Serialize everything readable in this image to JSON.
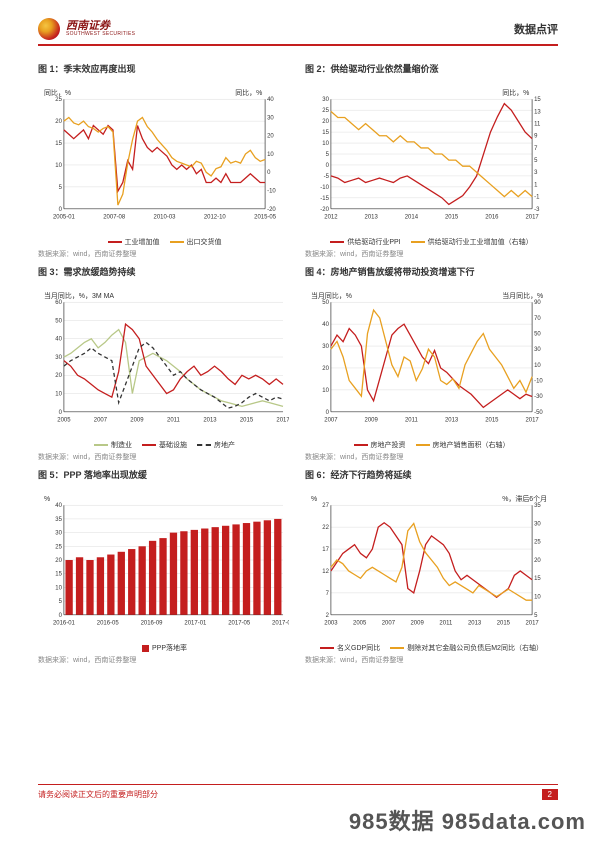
{
  "header": {
    "logo_cn": "西南证券",
    "logo_en": "SOUTHWEST SECURITIES",
    "right": "数据点评"
  },
  "panels": [
    {
      "title": "图 1：季末效应再度出现",
      "y_left_label": "同比，%",
      "y_right_label": "同比，%",
      "type": "line",
      "x_labels": [
        "2005-01",
        "2007-08",
        "2010-03",
        "2012-10",
        "2015-05"
      ],
      "y_left": {
        "min": 0,
        "max": 25,
        "ticks": [
          0,
          5,
          10,
          15,
          20,
          25
        ]
      },
      "y_right": {
        "min": -20,
        "max": 40,
        "ticks": [
          -20,
          -10,
          0,
          10,
          20,
          30,
          40
        ]
      },
      "series": [
        {
          "name": "工业增加值",
          "color": "#c41e1e",
          "axis": "left",
          "data": [
            18,
            17,
            16,
            17,
            18,
            16,
            19,
            18,
            17,
            19,
            18,
            4,
            6,
            11,
            9,
            19,
            16,
            14,
            13,
            14,
            13,
            12,
            10,
            9,
            10,
            9,
            10,
            8,
            9,
            6,
            6,
            7,
            6,
            8,
            6,
            6,
            6,
            7,
            8,
            7,
            6,
            6
          ]
        },
        {
          "name": "出口交货值",
          "color": "#e8a020",
          "axis": "right",
          "data": [
            28,
            30,
            27,
            26,
            28,
            25,
            24,
            22,
            24,
            25,
            22,
            -18,
            -12,
            5,
            18,
            28,
            30,
            25,
            22,
            18,
            15,
            12,
            8,
            6,
            5,
            4,
            3,
            6,
            5,
            0,
            -2,
            2,
            3,
            8,
            5,
            6,
            5,
            10,
            12,
            8,
            6,
            7
          ]
        }
      ],
      "legend": [
        {
          "label": "工业增加值",
          "color": "#c41e1e"
        },
        {
          "label": "出口交货值",
          "color": "#e8a020"
        }
      ],
      "source": "数据来源：wind，西南证券整理"
    },
    {
      "title": "图 2：供给驱动行业依然量缩价涨",
      "y_right_label": "同比，%",
      "type": "line",
      "x_labels": [
        "2012",
        "2013",
        "2014",
        "2015",
        "2016",
        "2017"
      ],
      "y_left": {
        "min": -20,
        "max": 30,
        "ticks": [
          -20,
          -15,
          -10,
          -5,
          0,
          5,
          10,
          15,
          20,
          25,
          30
        ]
      },
      "y_right": {
        "min": -3,
        "max": 15,
        "ticks": [
          -3,
          -1,
          1,
          3,
          5,
          7,
          9,
          11,
          13,
          15
        ]
      },
      "series": [
        {
          "name": "供给驱动行业PPI",
          "color": "#c41e1e",
          "axis": "left",
          "data": [
            -5,
            -6,
            -8,
            -7,
            -6,
            -8,
            -7,
            -6,
            -7,
            -8,
            -6,
            -5,
            -7,
            -9,
            -11,
            -13,
            -15,
            -18,
            -16,
            -14,
            -10,
            -5,
            5,
            15,
            22,
            28,
            25,
            20,
            15,
            12
          ]
        },
        {
          "name": "供给驱动行业工业增加值（右轴）",
          "color": "#e8a020",
          "axis": "right",
          "data": [
            13,
            12,
            12,
            11,
            10,
            11,
            10,
            9,
            9,
            8,
            9,
            8,
            8,
            7,
            7,
            6,
            6,
            5,
            5,
            4,
            4,
            3,
            2,
            1,
            0,
            -1,
            0,
            -1,
            0,
            -1
          ]
        }
      ],
      "legend": [
        {
          "label": "供给驱动行业PPI",
          "color": "#c41e1e"
        },
        {
          "label": "供给驱动行业工业增加值（右轴）",
          "color": "#e8a020"
        }
      ],
      "source": "数据来源：wind，西南证券整理"
    },
    {
      "title": "图 3：需求放缓趋势持续",
      "y_left_label": "当月同比，%，3M MA",
      "type": "line",
      "x_labels": [
        "2005",
        "2007",
        "2009",
        "2011",
        "2013",
        "2015",
        "2017"
      ],
      "y_left": {
        "min": 0,
        "max": 60,
        "ticks": [
          0,
          10,
          20,
          30,
          40,
          50,
          60
        ]
      },
      "series": [
        {
          "name": "制造业",
          "color": "#b8c888",
          "axis": "left",
          "dash": "none",
          "data": [
            30,
            32,
            35,
            38,
            40,
            35,
            38,
            42,
            45,
            38,
            10,
            28,
            30,
            32,
            30,
            28,
            25,
            22,
            18,
            15,
            12,
            10,
            8,
            6,
            5,
            4,
            3,
            4,
            5,
            6,
            5,
            4,
            3
          ]
        },
        {
          "name": "基础设施",
          "color": "#c41e1e",
          "axis": "left",
          "dash": "none",
          "data": [
            28,
            25,
            20,
            18,
            15,
            12,
            10,
            8,
            22,
            48,
            45,
            40,
            25,
            20,
            15,
            10,
            12,
            18,
            22,
            25,
            20,
            22,
            25,
            22,
            18,
            15,
            20,
            18,
            20,
            18,
            15,
            18,
            15
          ]
        },
        {
          "name": "房地产",
          "color": "#333333",
          "axis": "left",
          "dash": "4,3",
          "data": [
            25,
            28,
            30,
            32,
            35,
            32,
            30,
            28,
            5,
            15,
            25,
            35,
            38,
            35,
            30,
            25,
            20,
            22,
            18,
            15,
            12,
            10,
            8,
            5,
            2,
            3,
            5,
            8,
            10,
            8,
            6,
            8,
            7
          ]
        }
      ],
      "legend": [
        {
          "label": "制造业",
          "color": "#b8c888"
        },
        {
          "label": "基础设施",
          "color": "#c41e1e"
        },
        {
          "label": "房地产",
          "color": "#333333",
          "dash": true
        }
      ],
      "source": "数据来源：wind，西南证券整理"
    },
    {
      "title": "图 4：房地产销售放缓将带动投资增速下行",
      "y_left_label": "当月同比，%",
      "y_right_label": "当月同比，%",
      "type": "line",
      "x_labels": [
        "2007",
        "2009",
        "2011",
        "2013",
        "2015",
        "2017"
      ],
      "y_left": {
        "min": 0,
        "max": 50,
        "ticks": [
          0,
          10,
          20,
          30,
          40,
          50
        ]
      },
      "y_right": {
        "min": -50,
        "max": 90,
        "ticks": [
          -50,
          -30,
          -10,
          10,
          30,
          50,
          70,
          90
        ]
      },
      "series": [
        {
          "name": "房地产投资",
          "color": "#c41e1e",
          "axis": "left",
          "data": [
            30,
            35,
            32,
            38,
            35,
            30,
            10,
            5,
            15,
            25,
            35,
            38,
            40,
            35,
            30,
            25,
            22,
            28,
            20,
            18,
            15,
            12,
            10,
            8,
            5,
            2,
            4,
            6,
            8,
            10,
            8,
            6,
            8,
            7
          ]
        },
        {
          "name": "房地产销售面积（右轴）",
          "color": "#e8a020",
          "axis": "right",
          "data": [
            30,
            40,
            20,
            -10,
            -20,
            -30,
            50,
            80,
            70,
            40,
            10,
            -5,
            20,
            15,
            -10,
            5,
            30,
            20,
            -10,
            -15,
            -8,
            -20,
            10,
            25,
            40,
            50,
            30,
            20,
            10,
            -5,
            -20,
            -10,
            -25,
            -5
          ]
        }
      ],
      "legend": [
        {
          "label": "房地产投资",
          "color": "#c41e1e"
        },
        {
          "label": "房地产销售面积（右轴）",
          "color": "#e8a020"
        }
      ],
      "source": "数据来源：wind，西南证券整理"
    },
    {
      "title": "图 5：PPP 落地率出现放缓",
      "y_left_label": "%",
      "type": "bar",
      "x_labels": [
        "2016-01",
        "2016-05",
        "2016-09",
        "2017-01",
        "2017-05",
        "2017-09"
      ],
      "y_left": {
        "min": 0,
        "max": 40,
        "ticks": [
          0,
          5,
          10,
          15,
          20,
          25,
          30,
          35,
          40
        ]
      },
      "bars": {
        "color": "#c41e1e",
        "data": [
          20,
          21,
          20,
          21,
          22,
          23,
          24,
          25,
          27,
          28,
          30,
          30.5,
          31,
          31.5,
          32,
          32.5,
          33,
          33.5,
          34,
          34.5,
          35
        ]
      },
      "legend": [
        {
          "label": "PPP落地率",
          "color": "#c41e1e",
          "type": "bar"
        }
      ],
      "source": "数据来源：wind，西南证券整理"
    },
    {
      "title": "图 6：经济下行趋势将延续",
      "y_left_label": "%",
      "y_right_label": "%，滞后6个月",
      "type": "line",
      "x_labels": [
        "2003",
        "2005",
        "2007",
        "2009",
        "2011",
        "2013",
        "2015",
        "2017"
      ],
      "y_left": {
        "min": 2,
        "max": 27,
        "ticks": [
          2,
          7,
          12,
          17,
          22,
          27
        ]
      },
      "y_right": {
        "min": 5,
        "max": 35,
        "ticks": [
          5,
          10,
          15,
          20,
          25,
          30,
          35
        ]
      },
      "series": [
        {
          "name": "名义GDP同比",
          "color": "#c41e1e",
          "axis": "left",
          "data": [
            12,
            14,
            16,
            17,
            18,
            16,
            15,
            17,
            22,
            23,
            22,
            20,
            18,
            8,
            7,
            12,
            18,
            20,
            19,
            18,
            16,
            12,
            10,
            11,
            10,
            9,
            8,
            7,
            6,
            7,
            8,
            11,
            12,
            11,
            10
          ]
        },
        {
          "name": "剔除对其它金融公司负债后M2同比（右轴）",
          "color": "#e8a020",
          "axis": "right",
          "data": [
            18,
            20,
            19,
            17,
            16,
            15,
            17,
            18,
            17,
            16,
            15,
            14,
            18,
            28,
            30,
            25,
            22,
            20,
            18,
            15,
            13,
            14,
            13,
            12,
            11,
            13,
            12,
            11,
            10,
            11,
            12,
            11,
            10,
            9,
            9
          ]
        }
      ],
      "legend": [
        {
          "label": "名义GDP同比",
          "color": "#c41e1e"
        },
        {
          "label": "剔除对其它金融公司负债后M2同比（右轴）",
          "color": "#e8a020"
        }
      ],
      "source": "数据来源：wind，西南证券整理"
    }
  ],
  "footer": {
    "text": "请务必阅读正文后的重要声明部分",
    "page": "2"
  },
  "watermark": "985数据 985data.com",
  "colors": {
    "red": "#c41e1e",
    "orange": "#e8a020",
    "green": "#b8c888",
    "gray": "#888888",
    "text": "#333333",
    "bg": "#ffffff"
  }
}
